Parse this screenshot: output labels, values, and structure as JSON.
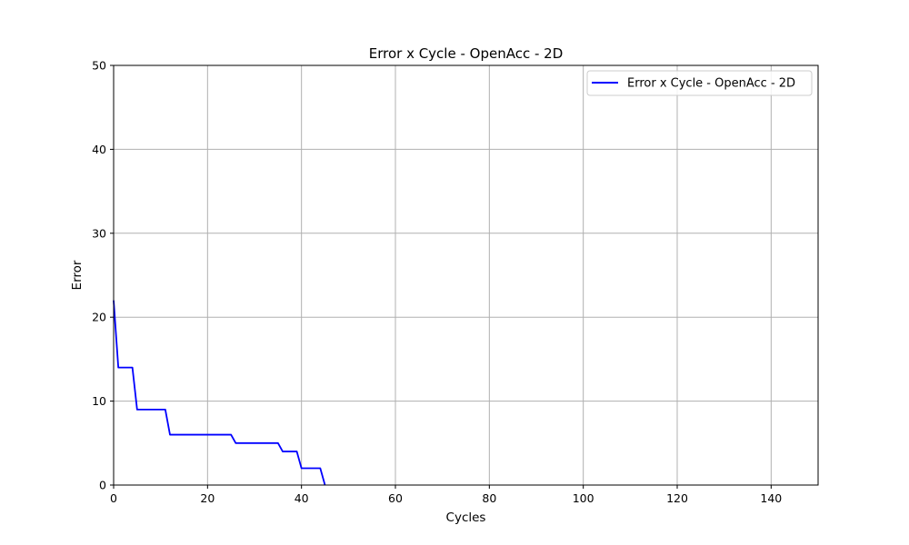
{
  "chart_data": {
    "type": "line",
    "title": "Error x Cycle - OpenAcc - 2D",
    "xlabel": "Cycles",
    "ylabel": "Error",
    "xlim": [
      0,
      150
    ],
    "ylim": [
      0,
      50
    ],
    "xticks": [
      0,
      20,
      40,
      60,
      80,
      100,
      120,
      140
    ],
    "yticks": [
      0,
      10,
      20,
      30,
      40,
      50
    ],
    "grid": true,
    "legend_position": "top-right",
    "series": [
      {
        "name": "Error x Cycle - OpenAcc - 2D",
        "color": "#0000ff",
        "x": [
          0,
          1,
          2,
          3,
          4,
          5,
          6,
          7,
          8,
          9,
          10,
          11,
          12,
          13,
          14,
          15,
          16,
          17,
          18,
          19,
          20,
          21,
          22,
          23,
          24,
          25,
          26,
          27,
          28,
          29,
          30,
          31,
          32,
          33,
          34,
          35,
          36,
          37,
          38,
          39,
          40,
          41,
          42,
          43,
          44,
          45
        ],
        "y": [
          22,
          14,
          14,
          14,
          14,
          9,
          9,
          9,
          9,
          9,
          9,
          9,
          6,
          6,
          6,
          6,
          6,
          6,
          6,
          6,
          6,
          6,
          6,
          6,
          6,
          6,
          5,
          5,
          5,
          5,
          5,
          5,
          5,
          5,
          5,
          5,
          4,
          4,
          4,
          4,
          2,
          2,
          2,
          2,
          2,
          0
        ]
      }
    ]
  }
}
